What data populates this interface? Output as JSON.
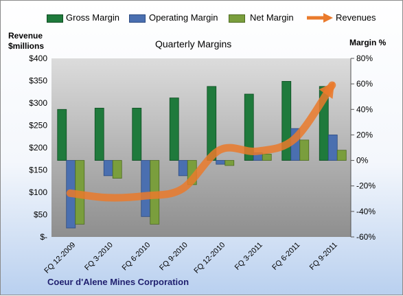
{
  "colors": {
    "gross": "#1f7a3c",
    "operating": "#4a6fb0",
    "net": "#7a9e3d",
    "revenue": "#ea7a2c",
    "plot_top": "#d9d9d9",
    "plot_bottom": "#8c8c8c"
  },
  "legend": {
    "gross": "Gross Margin",
    "operating": "Operating Margin",
    "net": "Net Margin",
    "revenue": "Revenues"
  },
  "left_axis_title_line1": "Revenue",
  "left_axis_title_line2": "$millions",
  "right_axis_title": "Margin %",
  "company": "Coeur d'Alene Mines Corporation",
  "chart_data": {
    "type": "bar",
    "title": "Quarterly Margins",
    "categories": [
      "FQ 12-2009",
      "FQ 3-2010",
      "FQ 6-2010",
      "FQ 9-2010",
      "FQ 12-2010",
      "FQ 3-2011",
      "FQ 6-2011",
      "FQ 9-2011"
    ],
    "series": [
      {
        "name": "Gross Margin",
        "axis": "right",
        "type": "bar",
        "values": [
          40,
          41,
          41,
          49,
          58,
          52,
          62,
          58
        ]
      },
      {
        "name": "Operating Margin",
        "axis": "right",
        "type": "bar",
        "values": [
          -53,
          -12,
          -44,
          -12,
          -3,
          6,
          25,
          20
        ]
      },
      {
        "name": "Net Margin",
        "axis": "right",
        "type": "bar",
        "values": [
          -50,
          -14,
          -50,
          -19,
          -4,
          5,
          16,
          8
        ]
      },
      {
        "name": "Revenues",
        "axis": "left",
        "type": "line",
        "values": [
          98,
          88,
          92,
          108,
          195,
          192,
          220,
          340
        ]
      }
    ],
    "left_axis": {
      "ylim": [
        0,
        400
      ],
      "ticks": [
        "$-",
        "$50",
        "$100",
        "$150",
        "$200",
        "$250",
        "$300",
        "$350",
        "$400"
      ]
    },
    "right_axis": {
      "ylim": [
        -60,
        80
      ],
      "ticks": [
        "-60%",
        "-40%",
        "-20%",
        "0%",
        "20%",
        "40%",
        "60%",
        "80%"
      ]
    },
    "legend_position": "top",
    "grid": false
  }
}
